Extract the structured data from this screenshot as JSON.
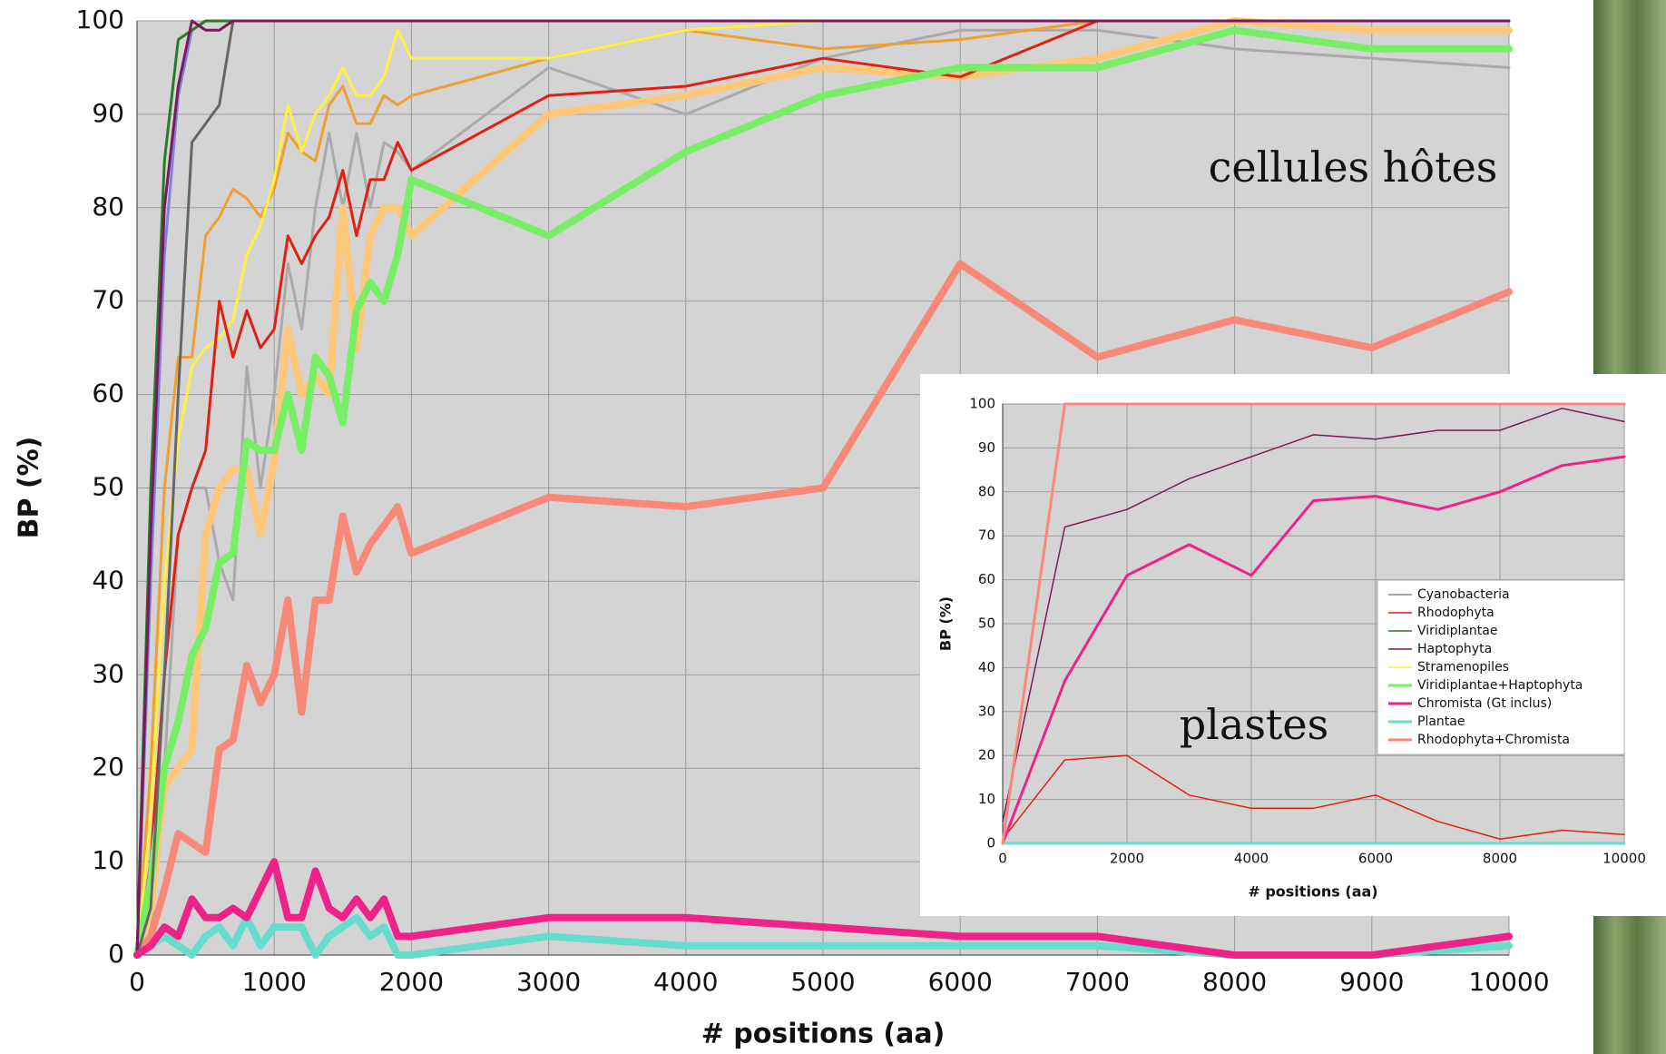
{
  "chart_data": [
    {
      "type": "line",
      "xlabel": "# positions (aa)",
      "ylabel": "BP (%)",
      "annotation": "cellules hôtes",
      "x": [
        0,
        100,
        200,
        300,
        400,
        500,
        600,
        700,
        800,
        900,
        1000,
        1100,
        1200,
        1300,
        1400,
        1500,
        1600,
        1700,
        1800,
        1900,
        2000,
        3000,
        4000,
        5000,
        6000,
        7000,
        8000,
        9000,
        10000
      ],
      "xlim": [
        0,
        10000
      ],
      "ylim": [
        0,
        100
      ],
      "xticks": [
        0,
        1000,
        2000,
        3000,
        4000,
        5000,
        6000,
        7000,
        8000,
        9000,
        10000
      ],
      "yticks": [
        0,
        10,
        20,
        30,
        40,
        50,
        60,
        70,
        80,
        90,
        100
      ],
      "grid": true,
      "series": [
        {
          "color": "#aaaaaa",
          "line_width": 3,
          "values": [
            0,
            2,
            20,
            45,
            50,
            50,
            42,
            38,
            63,
            50,
            60,
            74,
            67,
            80,
            88,
            80,
            88,
            80,
            87,
            86,
            84,
            95,
            90,
            96,
            99,
            99,
            97,
            96,
            95
          ]
        },
        {
          "color": "#ffc878",
          "line_width": 8,
          "values": [
            0,
            5,
            18,
            20,
            22,
            45,
            50,
            52,
            52,
            45,
            53,
            67,
            60,
            62,
            60,
            80,
            65,
            77,
            80,
            80,
            77,
            90,
            92,
            95,
            94,
            96,
            100,
            99,
            99
          ]
        },
        {
          "color": "#f0a030",
          "line_width": 3,
          "values": [
            0,
            20,
            50,
            64,
            64,
            77,
            79,
            82,
            81,
            79,
            82,
            88,
            86,
            85,
            91,
            93,
            89,
            89,
            92,
            91,
            92,
            96,
            99,
            97,
            98,
            100,
            100,
            100,
            100
          ]
        },
        {
          "color": "#ffee44",
          "line_width": 3,
          "values": [
            0,
            15,
            40,
            55,
            63,
            65,
            66,
            68,
            75,
            78,
            83,
            91,
            86,
            90,
            92,
            95,
            92,
            92,
            94,
            99,
            96,
            96,
            99,
            100,
            100,
            100,
            100,
            100,
            100
          ]
        },
        {
          "color": "#e02010",
          "line_width": 3,
          "values": [
            0,
            10,
            30,
            45,
            50,
            54,
            70,
            64,
            69,
            65,
            67,
            77,
            74,
            77,
            79,
            84,
            77,
            83,
            83,
            87,
            84,
            92,
            93,
            96,
            94,
            100,
            100,
            100,
            100
          ]
        },
        {
          "color": "#77ee66",
          "line_width": 8,
          "values": [
            0,
            8,
            20,
            25,
            32,
            35,
            42,
            43,
            55,
            54,
            54,
            60,
            54,
            64,
            62,
            57,
            69,
            72,
            70,
            75,
            83,
            77,
            86,
            92,
            95,
            95,
            99,
            97,
            97
          ]
        },
        {
          "color": "#f88878",
          "line_width": 8,
          "values": [
            0,
            2,
            7,
            13,
            12,
            11,
            22,
            23,
            31,
            27,
            30,
            38,
            26,
            38,
            38,
            47,
            41,
            44,
            46,
            48,
            43,
            49,
            48,
            50,
            74,
            64,
            68,
            65,
            71
          ]
        },
        {
          "color": "#666666",
          "line_width": 3,
          "values": [
            0,
            5,
            30,
            60,
            87,
            89,
            91,
            100,
            100,
            100,
            100,
            100,
            100,
            100,
            100,
            100,
            100,
            100,
            100,
            100,
            100,
            100,
            100,
            100,
            100,
            100,
            100,
            100,
            100
          ]
        },
        {
          "color": "#8080e0",
          "line_width": 3,
          "values": [
            0,
            40,
            75,
            92,
            99,
            100,
            100,
            100,
            100,
            100,
            100,
            100,
            100,
            100,
            100,
            100,
            100,
            100,
            100,
            100,
            100,
            100,
            100,
            100,
            100,
            100,
            100,
            100,
            100
          ]
        },
        {
          "color": "#2a7a2a",
          "line_width": 3,
          "values": [
            0,
            50,
            85,
            98,
            99,
            100,
            100,
            100,
            100,
            100,
            100,
            100,
            100,
            100,
            100,
            100,
            100,
            100,
            100,
            100,
            100,
            100,
            100,
            100,
            100,
            100,
            100,
            100,
            100
          ]
        },
        {
          "color": "#7a1a5a",
          "line_width": 3,
          "values": [
            0,
            45,
            80,
            93,
            100,
            99,
            99,
            100,
            100,
            100,
            100,
            100,
            100,
            100,
            100,
            100,
            100,
            100,
            100,
            100,
            100,
            100,
            100,
            100,
            100,
            100,
            100,
            100,
            100
          ]
        },
        {
          "color": "#66ddcc",
          "line_width": 8,
          "values": [
            0,
            1,
            2,
            1,
            0,
            2,
            3,
            1,
            4,
            1,
            3,
            3,
            3,
            0,
            2,
            3,
            4,
            2,
            3,
            0,
            0,
            2,
            1,
            1,
            1,
            1,
            0,
            0,
            1
          ]
        },
        {
          "color": "#ee2288",
          "line_width": 8,
          "values": [
            0,
            1,
            3,
            2,
            6,
            4,
            4,
            5,
            4,
            7,
            10,
            4,
            4,
            9,
            5,
            4,
            6,
            4,
            6,
            2,
            2,
            4,
            4,
            3,
            2,
            2,
            0,
            0,
            2
          ]
        }
      ]
    },
    {
      "type": "line",
      "xlabel": "# positions (aa)",
      "ylabel": "BP (%)",
      "annotation": "plastes",
      "legend": "right",
      "x": [
        0,
        1000,
        2000,
        3000,
        4000,
        5000,
        6000,
        7000,
        8000,
        9000,
        10000
      ],
      "xlim": [
        0,
        10000
      ],
      "ylim": [
        0,
        100
      ],
      "xticks": [
        0,
        2000,
        4000,
        6000,
        8000,
        10000
      ],
      "yticks": [
        0,
        10,
        20,
        30,
        40,
        50,
        60,
        70,
        80,
        90,
        100
      ],
      "grid": true,
      "series": [
        {
          "name": "Cyanobacteria",
          "color": "#888888",
          "line_width": 1.5,
          "values": [
            0,
            100,
            100,
            100,
            100,
            100,
            100,
            100,
            100,
            100,
            100
          ]
        },
        {
          "name": "Rhodophyta",
          "color": "#e02010",
          "line_width": 1.5,
          "values": [
            1,
            19,
            20,
            11,
            8,
            8,
            11,
            5,
            1,
            3,
            2
          ]
        },
        {
          "name": "Viridiplantae",
          "color": "#2a7a2a",
          "line_width": 1.5,
          "values": [
            0,
            0,
            0,
            0,
            0,
            0,
            0,
            0,
            0,
            0,
            0
          ]
        },
        {
          "name": "Haptophyta",
          "color": "#7a1a5a",
          "line_width": 1.5,
          "values": [
            5,
            72,
            76,
            83,
            88,
            93,
            92,
            94,
            94,
            99,
            96
          ]
        },
        {
          "name": "Stramenopiles",
          "color": "#ffee44",
          "line_width": 1.5,
          "values": [
            0,
            100,
            100,
            100,
            100,
            100,
            100,
            100,
            100,
            100,
            100
          ]
        },
        {
          "name": "Viridiplantae+Haptophyta",
          "color": "#77ee66",
          "line_width": 3,
          "values": [
            0,
            0,
            0,
            0,
            0,
            0,
            0,
            0,
            0,
            0,
            0
          ]
        },
        {
          "name": "Chromista (Gt inclus)",
          "color": "#ee2288",
          "line_width": 3,
          "values": [
            0,
            37,
            61,
            68,
            61,
            78,
            79,
            76,
            80,
            86,
            88
          ]
        },
        {
          "name": "Plantae",
          "color": "#66ddcc",
          "line_width": 3,
          "values": [
            0,
            0,
            0,
            0,
            0,
            0,
            0,
            0,
            0,
            0,
            0
          ]
        },
        {
          "name": "Rhodophyta+Chromista",
          "color": "#f88878",
          "line_width": 3,
          "values": [
            0,
            100,
            100,
            100,
            100,
            100,
            100,
            100,
            100,
            100,
            100
          ]
        }
      ]
    }
  ]
}
